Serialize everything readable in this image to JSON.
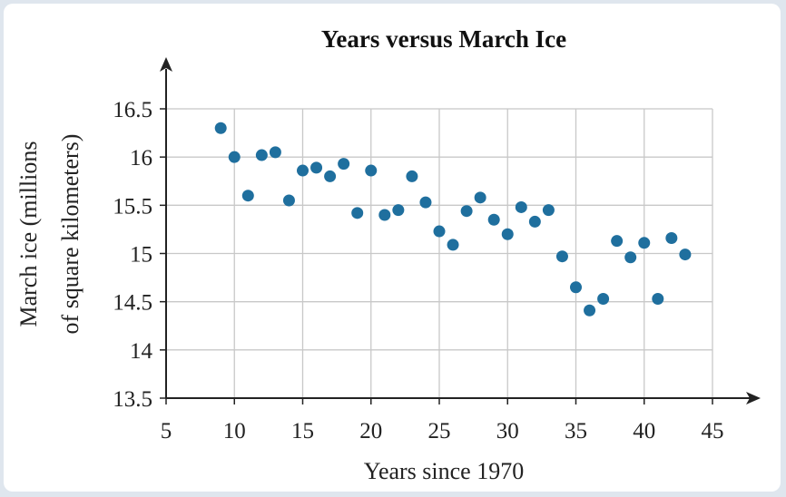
{
  "chart_data": {
    "type": "scatter",
    "title": "Years versus March Ice",
    "xlabel": "Years since 1970",
    "ylabel_lines": [
      "March ice (millions",
      "of square kilometers)"
    ],
    "xlim": [
      5,
      45
    ],
    "ylim": [
      13.5,
      16.5
    ],
    "xticks": [
      5,
      10,
      15,
      20,
      25,
      30,
      35,
      40,
      45
    ],
    "yticks": [
      13.5,
      14,
      14.5,
      15,
      15.5,
      16,
      16.5
    ],
    "ytick_labels": [
      "13.5",
      "14",
      "14.5",
      "15",
      "15.5",
      "16",
      "16.5"
    ],
    "grid": true,
    "point_color": "#1f6f9e",
    "points": [
      [
        9,
        16.3
      ],
      [
        10,
        16.0
      ],
      [
        11,
        15.6
      ],
      [
        12,
        16.02
      ],
      [
        13,
        16.05
      ],
      [
        14,
        15.55
      ],
      [
        15,
        15.86
      ],
      [
        16,
        15.89
      ],
      [
        17,
        15.8
      ],
      [
        18,
        15.93
      ],
      [
        19,
        15.42
      ],
      [
        20,
        15.86
      ],
      [
        21,
        15.4
      ],
      [
        22,
        15.45
      ],
      [
        23,
        15.8
      ],
      [
        24,
        15.53
      ],
      [
        25,
        15.23
      ],
      [
        26,
        15.09
      ],
      [
        27,
        15.44
      ],
      [
        28,
        15.58
      ],
      [
        29,
        15.35
      ],
      [
        30,
        15.2
      ],
      [
        31,
        15.48
      ],
      [
        32,
        15.33
      ],
      [
        33,
        15.45
      ],
      [
        34,
        14.97
      ],
      [
        35,
        14.65
      ],
      [
        36,
        14.41
      ],
      [
        37,
        14.53
      ],
      [
        38,
        15.13
      ],
      [
        39,
        14.96
      ],
      [
        40,
        15.11
      ],
      [
        41,
        14.53
      ],
      [
        42,
        15.16
      ],
      [
        43,
        14.99
      ]
    ]
  }
}
